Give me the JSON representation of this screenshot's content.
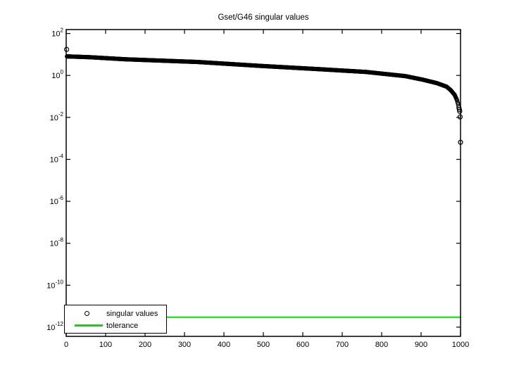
{
  "figure": {
    "background": "#ffffff",
    "axis_color": "#000000"
  },
  "chart_data": {
    "type": "scatter",
    "title": "Gset/G46 singular values",
    "x_scale": "linear",
    "y_scale": "log",
    "grid": false,
    "xlim": [
      0,
      1000
    ],
    "ylim": [
      4e-13,
      150.0
    ],
    "x_ticks": [
      0,
      100,
      200,
      300,
      400,
      500,
      600,
      700,
      800,
      900,
      1000
    ],
    "y_tick_exponents": [
      2,
      0,
      -2,
      -4,
      -6,
      -8,
      -10,
      -12
    ],
    "series": [
      {
        "name": "singular values",
        "style": "markers",
        "marker": "circle",
        "color": "#000000",
        "n_points": 1000,
        "control_points": [
          [
            1,
            17.4
          ],
          [
            2,
            8.1
          ],
          [
            60,
            7.4
          ],
          [
            150,
            5.9
          ],
          [
            332,
            4.4
          ],
          [
            500,
            2.8
          ],
          [
            650,
            1.95
          ],
          [
            760,
            1.47
          ],
          [
            860,
            0.93
          ],
          [
            904,
            0.63
          ],
          [
            940,
            0.43
          ],
          [
            965,
            0.29
          ],
          [
            975,
            0.2
          ],
          [
            985,
            0.12
          ],
          [
            991,
            0.067
          ],
          [
            994,
            0.042
          ],
          [
            996,
            0.029
          ],
          [
            998,
            0.0195
          ],
          [
            999,
            0.0105
          ],
          [
            1000,
            0.00065
          ]
        ]
      },
      {
        "name": "tolerance",
        "style": "hline",
        "color": "#00E000",
        "value": 3e-12
      }
    ],
    "legend": {
      "position": "bottom-left",
      "entries": [
        {
          "label": "singular values",
          "sample": "marker"
        },
        {
          "label": "tolerance",
          "sample": "line",
          "color": "#00E000"
        }
      ]
    }
  }
}
